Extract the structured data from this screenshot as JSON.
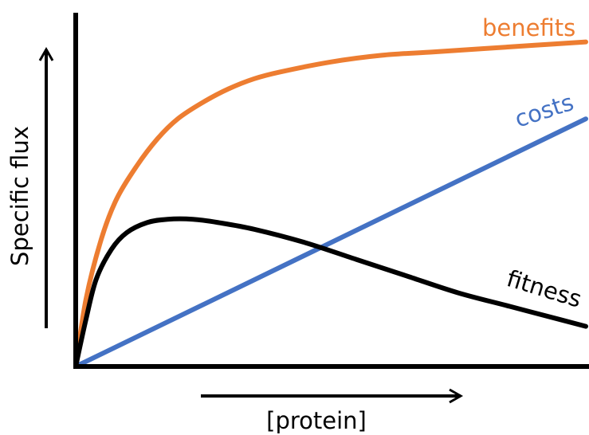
{
  "chart_data": {
    "type": "line",
    "title": "",
    "xlabel": "[protein]",
    "ylabel": "Specific flux",
    "xlim": [
      0,
      1
    ],
    "ylim": [
      0,
      1
    ],
    "grid": false,
    "legend": "none",
    "series": [
      {
        "name": "benefits",
        "color": "#ED7D31",
        "x": [
          0,
          0.02,
          0.05,
          0.08,
          0.12,
          0.16,
          0.2,
          0.25,
          0.3,
          0.35,
          0.4,
          0.5,
          0.6,
          0.7,
          0.8,
          0.9,
          1.0
        ],
        "y": [
          0,
          0.2,
          0.38,
          0.5,
          0.6,
          0.68,
          0.74,
          0.79,
          0.83,
          0.86,
          0.88,
          0.91,
          0.93,
          0.94,
          0.95,
          0.96,
          0.97
        ]
      },
      {
        "name": "costs",
        "color": "#4472C4",
        "x": [
          0,
          1.0
        ],
        "y": [
          0,
          0.74
        ]
      },
      {
        "name": "fitness",
        "color": "#000000",
        "x": [
          0,
          0.02,
          0.04,
          0.07,
          0.1,
          0.14,
          0.18,
          0.23,
          0.28,
          0.35,
          0.45,
          0.55,
          0.65,
          0.75,
          0.85,
          0.95,
          1.0
        ],
        "y": [
          0,
          0.14,
          0.26,
          0.35,
          0.4,
          0.43,
          0.44,
          0.44,
          0.43,
          0.41,
          0.37,
          0.32,
          0.27,
          0.22,
          0.18,
          0.14,
          0.12
        ]
      }
    ]
  }
}
